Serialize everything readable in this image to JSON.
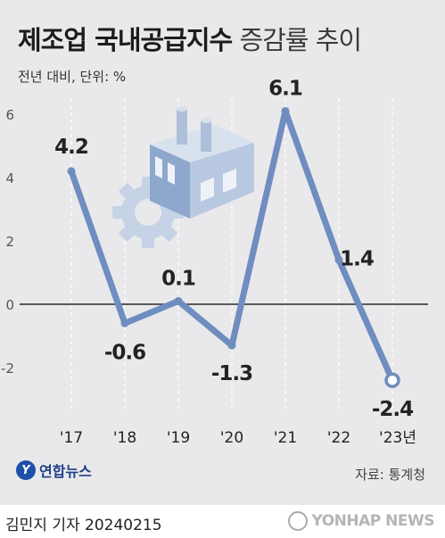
{
  "header": {
    "title_bold": "제조업 국내공급지수",
    "title_light": "증감률 추이",
    "subtitle": "전년 대비, 단위: %"
  },
  "chart_data": {
    "type": "line",
    "categories": [
      "'17",
      "'18",
      "'19",
      "'20",
      "'21",
      "'22",
      "'23년"
    ],
    "values": [
      4.2,
      -0.6,
      0.1,
      -1.3,
      6.1,
      1.4,
      -2.4
    ],
    "value_labels": [
      "4.2",
      "-0.6",
      "0.1",
      "-1.3",
      "6.1",
      "1.4",
      "-2.4"
    ],
    "y_ticks": [
      "6",
      "4",
      "2",
      "0",
      "-2"
    ],
    "ylim": [
      -3,
      6.5
    ],
    "line_color": "#6f8dbe",
    "last_point_hollow": true
  },
  "brand": {
    "logo_text": "연합뉴스",
    "source": "자료: 통계청"
  },
  "footer": {
    "byline": "김민지 기자  20240215",
    "watermark": "YONHAP NEWS"
  }
}
